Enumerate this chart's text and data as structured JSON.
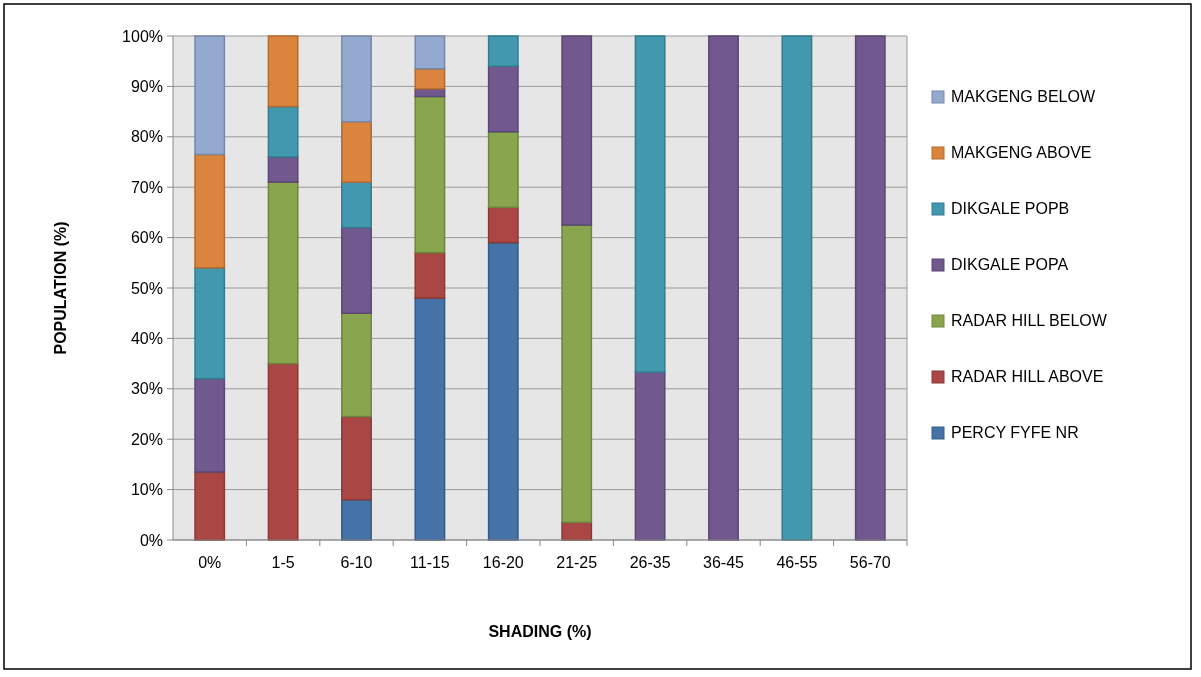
{
  "chart_data": {
    "type": "bar",
    "stacked": true,
    "xlabel": "SHADING (%)",
    "ylabel": "POPULATION (%)",
    "categories": [
      "0%",
      "1-5",
      "6-10",
      "11-15",
      "16-20",
      "21-25",
      "26-35",
      "36-45",
      "46-55",
      "56-70"
    ],
    "series": [
      {
        "name": "PERCY FYFE NR",
        "color": "#4572a7",
        "values": [
          0,
          0,
          8,
          48,
          59,
          0,
          0,
          0,
          0,
          0
        ]
      },
      {
        "name": "RADAR HILL ABOVE",
        "color": "#aa4643",
        "values": [
          13.5,
          35,
          16.5,
          9,
          7,
          3.5,
          0,
          0,
          0,
          0
        ]
      },
      {
        "name": "RADAR HILL BELOW",
        "color": "#89a54e",
        "values": [
          0,
          36,
          20.5,
          31,
          15,
          59,
          0,
          0,
          0,
          0
        ]
      },
      {
        "name": "DIKGALE POPA",
        "color": "#71588f",
        "values": [
          18.5,
          5,
          17,
          1.5,
          13,
          37.5,
          33.3,
          100,
          0,
          100
        ]
      },
      {
        "name": "DIKGALE POPB",
        "color": "#4198af",
        "values": [
          22,
          10,
          9,
          0,
          6,
          0,
          66.7,
          0,
          100,
          0
        ]
      },
      {
        "name": "MAKGENG ABOVE",
        "color": "#db843d",
        "values": [
          22.5,
          14,
          12,
          4,
          0,
          0,
          0,
          0,
          0,
          0
        ]
      },
      {
        "name": "MAKGENG BELOW",
        "color": "#93a9cf",
        "values": [
          23.5,
          0,
          17,
          6.5,
          0,
          0,
          0,
          0,
          0,
          0
        ]
      }
    ],
    "ylim": [
      0,
      100
    ],
    "yticks": [
      {
        "value": 0,
        "label": "0%"
      },
      {
        "value": 10,
        "label": "10%"
      },
      {
        "value": 20,
        "label": "20%"
      },
      {
        "value": 30,
        "label": "30%"
      },
      {
        "value": 40,
        "label": "40%"
      },
      {
        "value": 50,
        "label": "50%"
      },
      {
        "value": 60,
        "label": "60%"
      },
      {
        "value": 70,
        "label": "70%"
      },
      {
        "value": 80,
        "label": "80%"
      },
      {
        "value": 90,
        "label": "90%"
      },
      {
        "value": 100,
        "label": "100%"
      }
    ],
    "grid": "y",
    "legend": "right"
  }
}
